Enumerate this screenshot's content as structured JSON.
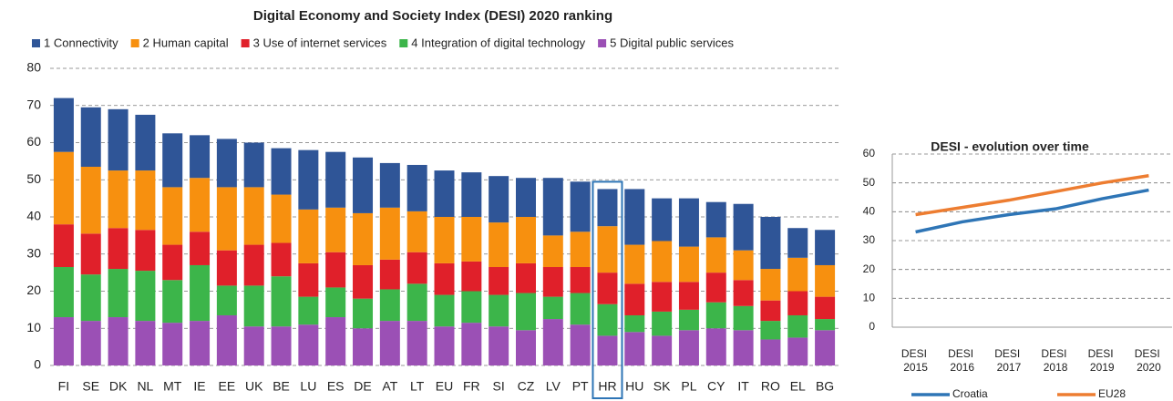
{
  "chart_data": [
    {
      "type": "stacked_bar",
      "title": "Digital Economy and Society Index (DESI) 2020 ranking",
      "categories": [
        "FI",
        "SE",
        "DK",
        "NL",
        "MT",
        "IE",
        "EE",
        "UK",
        "BE",
        "LU",
        "ES",
        "DE",
        "AT",
        "LT",
        "EU",
        "FR",
        "SI",
        "CZ",
        "LV",
        "PT",
        "HR",
        "HU",
        "SK",
        "PL",
        "CY",
        "IT",
        "RO",
        "EL",
        "BG"
      ],
      "series": [
        {
          "name": "1 Connectivity",
          "color": "#2f5597",
          "values": [
            14.5,
            16,
            16.5,
            15,
            14.5,
            11.5,
            13,
            12,
            12.5,
            16,
            15,
            15,
            12,
            12.5,
            12.5,
            12,
            12.5,
            10.5,
            15.5,
            13.5,
            10,
            15,
            11.5,
            13,
            9.5,
            12.5,
            14,
            8,
            9.5
          ]
        },
        {
          "name": "2 Human capital",
          "color": "#f7900f",
          "values": [
            19.5,
            18,
            15.5,
            16,
            15.5,
            14.5,
            17,
            15.5,
            13,
            14.5,
            12,
            14,
            14,
            11,
            12.5,
            12,
            12,
            12.5,
            8.5,
            9.5,
            12.5,
            10.5,
            11,
            9.5,
            9.5,
            8,
            8.5,
            9,
            8.5
          ]
        },
        {
          "name": "3 Use of internet services",
          "color": "#e0202a",
          "values": [
            11.5,
            11,
            11,
            11,
            9.5,
            9,
            9.5,
            11,
            9,
            9,
            9.5,
            9,
            8,
            8.5,
            8.5,
            8,
            7.5,
            8,
            8,
            7,
            8.5,
            8.5,
            8,
            7.5,
            8,
            7,
            5.5,
            6.5,
            6
          ]
        },
        {
          "name": "4 Integration of digital technology",
          "color": "#3cb54a",
          "values": [
            13.5,
            12.5,
            13,
            13.5,
            11.5,
            15,
            8,
            11,
            13.5,
            7.5,
            8,
            8,
            8.5,
            10,
            8.5,
            8.5,
            8.5,
            10,
            6,
            8.5,
            8.5,
            4.5,
            6.5,
            5.5,
            7,
            6.5,
            5,
            6,
            3
          ]
        },
        {
          "name": "5 Digital public services",
          "color": "#9b50b5",
          "values": [
            13,
            12,
            13,
            12,
            11.5,
            12,
            13.5,
            10.5,
            10.5,
            11,
            13,
            10,
            12,
            12,
            10.5,
            11.5,
            10.5,
            9.5,
            12.5,
            11,
            8,
            9,
            8,
            9.5,
            10,
            9.5,
            7,
            7.5,
            9.5
          ]
        }
      ],
      "ylim": [
        0,
        80
      ],
      "yticks": [
        0,
        10,
        20,
        30,
        40,
        50,
        60,
        70,
        80
      ],
      "grid": true,
      "legend": "top",
      "highlight": "HR",
      "highlight_color": "#2e75b6"
    },
    {
      "type": "line",
      "title": "DESI - evolution over time",
      "categories": [
        "DESI 2015",
        "DESI 2016",
        "DESI 2017",
        "DESI 2018",
        "DESI 2019",
        "DESI 2020"
      ],
      "series": [
        {
          "name": "Croatia",
          "color": "#2e75b6",
          "values": [
            33,
            36.5,
            39,
            41,
            44.5,
            47.5
          ]
        },
        {
          "name": "EU28",
          "color": "#ed7d31",
          "values": [
            39,
            41.5,
            44,
            47,
            50,
            52.5
          ]
        }
      ],
      "ylim": [
        0,
        60
      ],
      "yticks": [
        0,
        10,
        20,
        30,
        40,
        50,
        60
      ],
      "grid": true,
      "legend": "bottom"
    }
  ]
}
